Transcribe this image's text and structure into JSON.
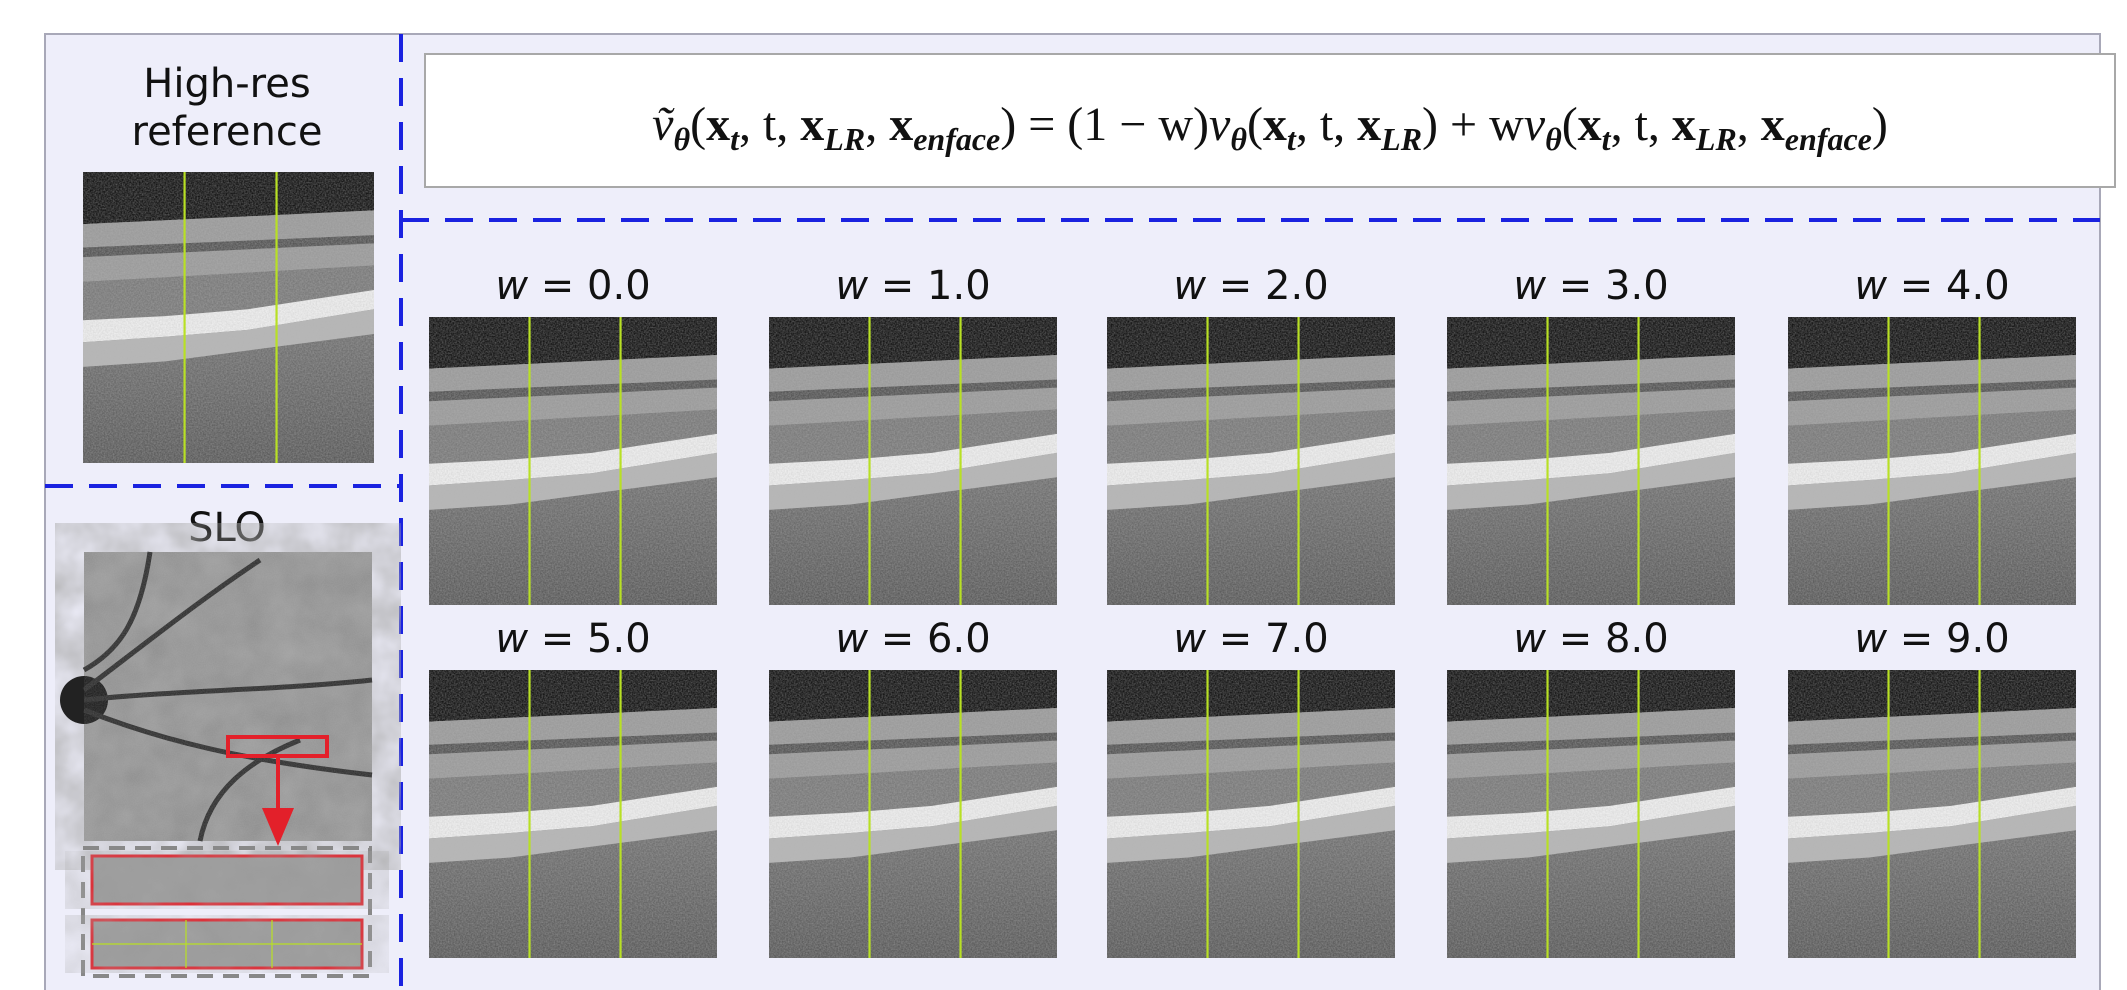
{
  "left_panel": {
    "reference_title": "High-res reference",
    "slo_title": "SLO"
  },
  "formula": [
    {
      "text": "ṽ",
      "sub": "θ"
    },
    {
      "text": "("
    },
    {
      "text": "x",
      "sub": "t",
      "bold": true
    },
    {
      "text": ", t, "
    },
    {
      "text": "x",
      "sub": "LR",
      "bold": true
    },
    {
      "text": ", "
    },
    {
      "text": "x",
      "sub": "enface",
      "bold": true
    },
    {
      "text": ") = (1 − w)"
    },
    {
      "text": "v",
      "sub": "θ"
    },
    {
      "text": "("
    },
    {
      "text": "x",
      "sub": "t",
      "bold": true
    },
    {
      "text": ", t, "
    },
    {
      "text": "x",
      "sub": "LR",
      "bold": true
    },
    {
      "text": ") + w"
    },
    {
      "text": "v",
      "sub": "θ"
    },
    {
      "text": "("
    },
    {
      "text": "x",
      "sub": "t",
      "bold": true
    },
    {
      "text": ", t, "
    },
    {
      "text": "x",
      "sub": "LR",
      "bold": true
    },
    {
      "text": ", "
    },
    {
      "text": "x",
      "sub": "enface",
      "bold": true
    },
    {
      "text": ")"
    }
  ],
  "panels": [
    {
      "var": "w",
      "text": " = 0.0"
    },
    {
      "var": "w",
      "text": " = 1.0"
    },
    {
      "var": "w",
      "text": " = 2.0"
    },
    {
      "var": "w",
      "text": " = 3.0"
    },
    {
      "var": "w",
      "text": " = 4.0"
    },
    {
      "var": "w",
      "text": " = 5.0"
    },
    {
      "var": "w",
      "text": " = 6.0"
    },
    {
      "var": "w",
      "text": " = 7.0"
    },
    {
      "var": "w",
      "text": " = 8.0"
    },
    {
      "var": "w",
      "text": " = 9.0"
    }
  ]
}
